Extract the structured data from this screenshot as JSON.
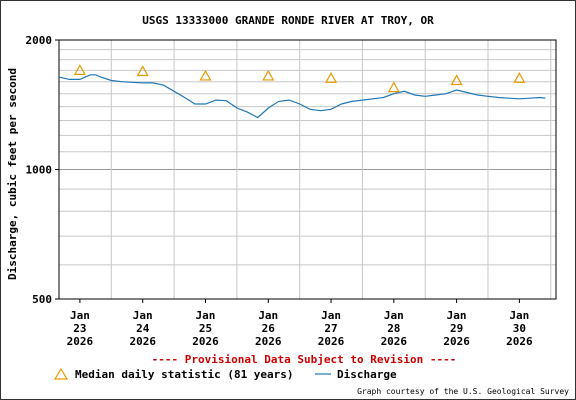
{
  "chart_data": {
    "type": "line",
    "title": "USGS 13333000 GRANDE RONDE RIVER AT TROY, OR",
    "ylabel": "Discharge, cubic feet per second",
    "y_scale": "log",
    "ylim": [
      500,
      2000
    ],
    "y_ticks": [
      "500",
      "1000",
      "2000"
    ],
    "x_range": [
      "2026-01-22 16:00",
      "2026-01-30 14:00"
    ],
    "x_ticks": [
      {
        "date": "2026-01-23",
        "label_month": "Jan",
        "label_day": "23",
        "label_year": "2026"
      },
      {
        "date": "2026-01-24",
        "label_month": "Jan",
        "label_day": "24",
        "label_year": "2026"
      },
      {
        "date": "2026-01-25",
        "label_month": "Jan",
        "label_day": "25",
        "label_year": "2026"
      },
      {
        "date": "2026-01-26",
        "label_month": "Jan",
        "label_day": "26",
        "label_year": "2026"
      },
      {
        "date": "2026-01-27",
        "label_month": "Jan",
        "label_day": "27",
        "label_year": "2026"
      },
      {
        "date": "2026-01-28",
        "label_month": "Jan",
        "label_day": "28",
        "label_year": "2026"
      },
      {
        "date": "2026-01-29",
        "label_month": "Jan",
        "label_day": "29",
        "label_year": "2026"
      },
      {
        "date": "2026-01-30",
        "label_month": "Jan",
        "label_day": "30",
        "label_year": "2026"
      }
    ],
    "grid": true,
    "series": [
      {
        "name": "Discharge",
        "color": "#1f77b4",
        "points": [
          {
            "x": "2026-01-22 16:00",
            "y": 1640
          },
          {
            "x": "2026-01-22 20:00",
            "y": 1620
          },
          {
            "x": "2026-01-23 00:00",
            "y": 1620
          },
          {
            "x": "2026-01-23 02:00",
            "y": 1640
          },
          {
            "x": "2026-01-23 04:00",
            "y": 1660
          },
          {
            "x": "2026-01-23 06:00",
            "y": 1660
          },
          {
            "x": "2026-01-23 08:00",
            "y": 1640
          },
          {
            "x": "2026-01-23 12:00",
            "y": 1610
          },
          {
            "x": "2026-01-23 16:00",
            "y": 1600
          },
          {
            "x": "2026-01-23 20:00",
            "y": 1595
          },
          {
            "x": "2026-01-24 00:00",
            "y": 1590
          },
          {
            "x": "2026-01-24 04:00",
            "y": 1590
          },
          {
            "x": "2026-01-24 08:00",
            "y": 1570
          },
          {
            "x": "2026-01-24 12:00",
            "y": 1520
          },
          {
            "x": "2026-01-24 16:00",
            "y": 1470
          },
          {
            "x": "2026-01-24 20:00",
            "y": 1420
          },
          {
            "x": "2026-01-25 00:00",
            "y": 1420
          },
          {
            "x": "2026-01-25 04:00",
            "y": 1450
          },
          {
            "x": "2026-01-25 08:00",
            "y": 1445
          },
          {
            "x": "2026-01-25 12:00",
            "y": 1390
          },
          {
            "x": "2026-01-25 16:00",
            "y": 1360
          },
          {
            "x": "2026-01-25 20:00",
            "y": 1320
          },
          {
            "x": "2026-01-26 00:00",
            "y": 1390
          },
          {
            "x": "2026-01-26 04:00",
            "y": 1440
          },
          {
            "x": "2026-01-26 08:00",
            "y": 1450
          },
          {
            "x": "2026-01-26 12:00",
            "y": 1420
          },
          {
            "x": "2026-01-26 16:00",
            "y": 1380
          },
          {
            "x": "2026-01-26 20:00",
            "y": 1370
          },
          {
            "x": "2026-01-27 00:00",
            "y": 1380
          },
          {
            "x": "2026-01-27 04:00",
            "y": 1420
          },
          {
            "x": "2026-01-27 08:00",
            "y": 1440
          },
          {
            "x": "2026-01-27 12:00",
            "y": 1450
          },
          {
            "x": "2026-01-27 16:00",
            "y": 1460
          },
          {
            "x": "2026-01-27 20:00",
            "y": 1470
          },
          {
            "x": "2026-01-28 00:00",
            "y": 1500
          },
          {
            "x": "2026-01-28 04:00",
            "y": 1520
          },
          {
            "x": "2026-01-28 08:00",
            "y": 1490
          },
          {
            "x": "2026-01-28 12:00",
            "y": 1480
          },
          {
            "x": "2026-01-28 16:00",
            "y": 1490
          },
          {
            "x": "2026-01-28 20:00",
            "y": 1500
          },
          {
            "x": "2026-01-29 00:00",
            "y": 1530
          },
          {
            "x": "2026-01-29 04:00",
            "y": 1510
          },
          {
            "x": "2026-01-29 08:00",
            "y": 1490
          },
          {
            "x": "2026-01-29 12:00",
            "y": 1480
          },
          {
            "x": "2026-01-29 16:00",
            "y": 1470
          },
          {
            "x": "2026-01-29 20:00",
            "y": 1465
          },
          {
            "x": "2026-01-30 00:00",
            "y": 1460
          },
          {
            "x": "2026-01-30 04:00",
            "y": 1465
          },
          {
            "x": "2026-01-30 08:00",
            "y": 1470
          },
          {
            "x": "2026-01-30 10:00",
            "y": 1465
          }
        ]
      },
      {
        "name": "Median daily statistic (81 years)",
        "marker": "triangle",
        "color": "#e69a00",
        "points": [
          {
            "x": "2026-01-23 00:00",
            "y": 1700
          },
          {
            "x": "2026-01-24 00:00",
            "y": 1690
          },
          {
            "x": "2026-01-25 00:00",
            "y": 1650
          },
          {
            "x": "2026-01-26 00:00",
            "y": 1650
          },
          {
            "x": "2026-01-27 00:00",
            "y": 1630
          },
          {
            "x": "2026-01-28 00:00",
            "y": 1550
          },
          {
            "x": "2026-01-29 00:00",
            "y": 1610
          },
          {
            "x": "2026-01-30 00:00",
            "y": 1630
          }
        ]
      }
    ],
    "legend_placement": "bottom-left"
  },
  "notice": "---- Provisional Data Subject to Revision ----",
  "legend": {
    "median_label": "Median daily statistic (81 years)",
    "discharge_label": "Discharge"
  },
  "credit": "Graph courtesy of the U.S. Geological Survey",
  "colors": {
    "discharge": "#1f77b4",
    "median": "#e69a00",
    "notice": "#cc0000",
    "grid": "#c8c8c8"
  }
}
